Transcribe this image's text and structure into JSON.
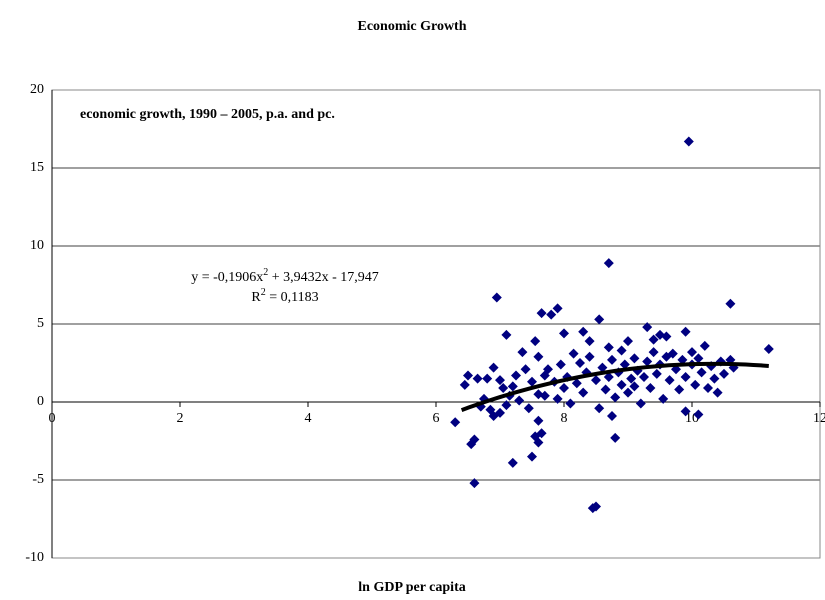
{
  "chart_data": {
    "type": "scatter",
    "title": "Economic Growth",
    "annotation": "economic growth, 1990 – 2005, p.a. and pc.",
    "x_label": "ln GDP per capita",
    "color": "#000080",
    "xlim": [
      0,
      12
    ],
    "xticks": [
      0,
      2,
      4,
      6,
      8,
      10,
      12
    ],
    "ylim": [
      -10,
      20
    ],
    "yticks": [
      -10,
      -5,
      0,
      5,
      10,
      15,
      20
    ],
    "grid": true,
    "x": [
      6.3,
      6.45,
      6.5,
      6.55,
      6.6,
      6.6,
      6.65,
      6.7,
      6.75,
      6.8,
      6.85,
      6.9,
      6.9,
      6.95,
      7.0,
      7.0,
      7.05,
      7.1,
      7.1,
      7.15,
      7.2,
      7.2,
      7.25,
      7.3,
      7.35,
      7.4,
      7.45,
      7.5,
      7.5,
      7.55,
      7.55,
      7.6,
      7.6,
      7.6,
      7.6,
      7.65,
      7.65,
      7.7,
      7.7,
      7.75,
      7.8,
      7.85,
      7.9,
      7.9,
      7.95,
      8.0,
      8.0,
      8.05,
      8.1,
      8.15,
      8.2,
      8.25,
      8.3,
      8.3,
      8.35,
      8.4,
      8.4,
      8.45,
      8.5,
      8.5,
      8.55,
      8.55,
      8.6,
      8.65,
      8.7,
      8.7,
      8.7,
      8.75,
      8.75,
      8.8,
      8.8,
      8.85,
      8.9,
      8.9,
      8.95,
      9.0,
      9.0,
      9.05,
      9.1,
      9.1,
      9.15,
      9.2,
      9.25,
      9.3,
      9.3,
      9.35,
      9.4,
      9.4,
      9.45,
      9.5,
      9.5,
      9.55,
      9.6,
      9.6,
      9.65,
      9.7,
      9.75,
      9.8,
      9.85,
      9.9,
      9.9,
      9.9,
      9.95,
      10.0,
      10.0,
      10.05,
      10.1,
      10.1,
      10.15,
      10.2,
      10.25,
      10.3,
      10.35,
      10.4,
      10.45,
      10.5,
      10.6,
      10.6,
      10.65,
      11.2
    ],
    "values": [
      -1.3,
      1.1,
      1.7,
      -2.7,
      -2.4,
      -5.2,
      1.5,
      -0.3,
      0.2,
      1.5,
      -0.5,
      -0.9,
      2.2,
      6.7,
      1.4,
      -0.7,
      0.9,
      -0.2,
      4.3,
      0.4,
      -3.9,
      1.0,
      1.7,
      0.1,
      3.2,
      2.1,
      -0.4,
      -3.5,
      1.3,
      -2.2,
      3.9,
      0.5,
      2.9,
      -1.2,
      -2.6,
      5.7,
      -2.0,
      1.7,
      0.4,
      2.1,
      5.6,
      1.3,
      6.0,
      0.2,
      2.4,
      0.9,
      4.4,
      1.6,
      -0.1,
      3.1,
      1.2,
      2.5,
      4.5,
      0.6,
      1.9,
      3.9,
      2.9,
      -6.8,
      -6.7,
      1.4,
      5.3,
      -0.4,
      2.2,
      0.8,
      8.9,
      3.5,
      1.6,
      -0.9,
      2.7,
      -2.3,
      0.3,
      1.9,
      3.3,
      1.1,
      2.4,
      0.6,
      3.9,
      1.5,
      2.8,
      1.0,
      2.0,
      -0.1,
      1.6,
      4.8,
      2.6,
      0.9,
      4.0,
      3.2,
      1.8,
      4.3,
      2.4,
      0.2,
      4.2,
      2.9,
      1.4,
      3.1,
      2.1,
      0.8,
      2.7,
      -0.6,
      4.5,
      1.6,
      16.7,
      2.4,
      3.2,
      1.1,
      -0.8,
      2.8,
      1.9,
      3.6,
      0.9,
      2.3,
      1.5,
      0.6,
      2.6,
      1.8,
      6.3,
      2.7,
      2.2,
      3.4
    ],
    "trendline": {
      "coefficients": [
        -0.1906,
        3.9432,
        -17.947
      ],
      "xrange": [
        6.4,
        11.2
      ],
      "equation": [
        "y = -0,1906x",
        "2",
        " + 3,9432x - 17,947"
      ],
      "r2": [
        "R",
        "2",
        " = 0,1183"
      ]
    }
  }
}
